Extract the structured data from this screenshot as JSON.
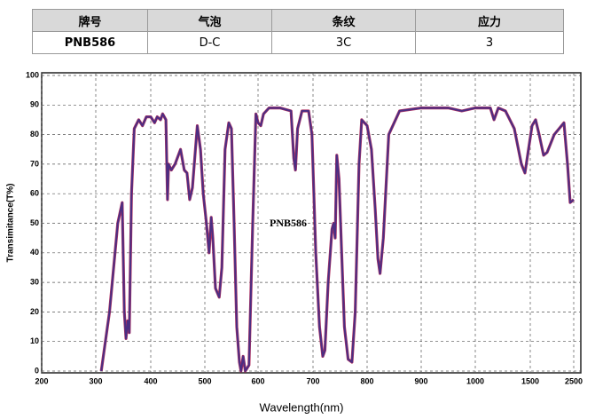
{
  "table": {
    "header": [
      "牌号",
      "气泡",
      "条纹",
      "应力"
    ],
    "rows": [
      [
        "PNB586",
        "D-C",
        "3C",
        "3"
      ]
    ]
  },
  "chart_data": {
    "type": "line",
    "annotation": "PNB586",
    "x_label": "Wavelength(nm)",
    "y_label": "Transimitance(T%)",
    "color": "#4b2e83",
    "grid": true,
    "xlim": [
      200,
      2500
    ],
    "xticks": [
      200,
      300,
      400,
      500,
      600,
      700,
      800,
      900,
      1000,
      1500,
      2500
    ],
    "ylim": [
      0,
      100
    ],
    "yticks": [
      0,
      10,
      20,
      30,
      40,
      50,
      60,
      70,
      80,
      90,
      100
    ],
    "x": [
      310,
      325,
      340,
      348,
      352,
      355,
      358,
      361,
      365,
      370,
      378,
      385,
      392,
      400,
      407,
      412,
      418,
      422,
      428,
      431,
      433,
      438,
      445,
      455,
      462,
      467,
      472,
      477,
      486,
      492,
      497,
      503,
      508,
      512,
      515,
      520,
      527,
      532,
      538,
      545,
      550,
      555,
      560,
      565,
      568,
      572,
      576,
      583,
      590,
      596,
      600,
      605,
      610,
      620,
      640,
      660,
      665,
      668,
      672,
      680,
      692,
      698,
      705,
      712,
      718,
      722,
      728,
      735,
      738,
      741,
      744,
      748,
      753,
      758,
      765,
      772,
      778,
      785,
      790,
      800,
      808,
      815,
      820,
      824,
      830,
      840,
      860,
      900,
      950,
      975,
      1000,
      1137,
      1170,
      1210,
      1274,
      1355,
      1419,
      1452,
      1484,
      1541,
      1622,
      1704,
      1806,
      1888,
      2051,
      2276,
      2357,
      2418,
      2500
    ],
    "values": [
      0,
      20,
      50,
      57,
      20,
      11,
      17,
      13,
      60,
      82,
      85,
      83,
      86,
      86,
      84,
      86,
      85,
      87,
      85,
      58,
      70,
      68,
      70,
      75,
      68,
      67,
      58,
      62,
      83,
      75,
      60,
      50,
      40,
      52,
      45,
      28,
      25,
      35,
      75,
      84,
      82,
      50,
      15,
      3,
      0,
      5,
      0,
      2,
      50,
      87,
      84,
      83,
      87,
      89,
      89,
      88,
      72,
      68,
      82,
      88,
      88,
      80,
      40,
      15,
      5,
      7,
      30,
      48,
      50,
      45,
      73,
      65,
      40,
      15,
      4,
      3,
      20,
      70,
      85,
      83,
      75,
      55,
      38,
      33,
      45,
      80,
      88,
      89,
      89,
      88,
      89,
      89,
      85,
      89,
      88,
      82,
      70,
      67,
      75,
      83,
      85,
      80,
      73,
      74,
      80,
      84,
      70,
      57,
      58
    ]
  }
}
